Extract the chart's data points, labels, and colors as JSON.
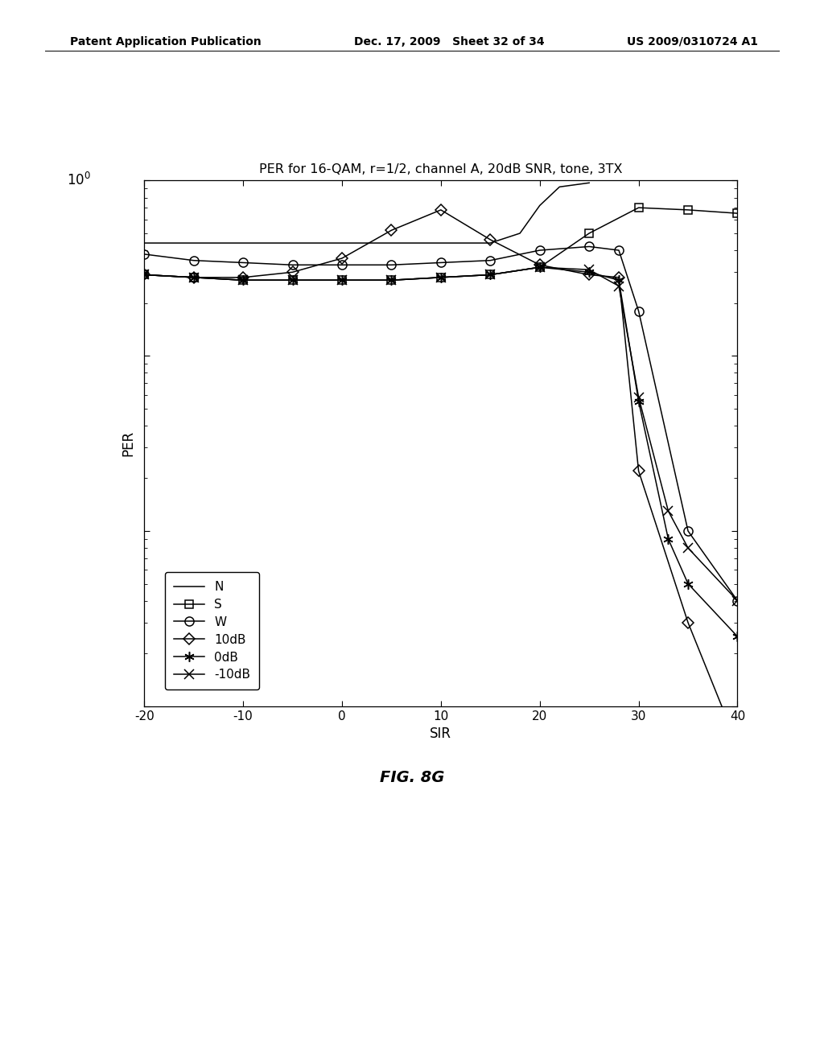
{
  "title": "PER for 16-QAM, r=1/2, channel A, 20dB SNR, tone, 3TX",
  "xlabel": "SIR",
  "ylabel": "PER",
  "fig_caption": "FIG. 8G",
  "header_left": "Patent Application Publication",
  "header_center": "Dec. 17, 2009   Sheet 32 of 34",
  "header_right": "US 2009/0310724 A1",
  "series": [
    {
      "label": "N",
      "marker": "none",
      "x": [
        -20,
        -10,
        0,
        10,
        15,
        18,
        20,
        22,
        25
      ],
      "y": [
        0.44,
        0.44,
        0.44,
        0.44,
        0.44,
        0.5,
        0.72,
        0.92,
        0.97
      ]
    },
    {
      "label": "S",
      "marker": "s",
      "x": [
        -20,
        -15,
        -10,
        -5,
        0,
        5,
        10,
        15,
        20,
        25,
        30,
        35,
        40
      ],
      "y": [
        0.29,
        0.28,
        0.27,
        0.27,
        0.27,
        0.27,
        0.28,
        0.29,
        0.32,
        0.5,
        0.7,
        0.68,
        0.65
      ]
    },
    {
      "label": "W",
      "marker": "o",
      "x": [
        -20,
        -15,
        -10,
        -5,
        0,
        5,
        10,
        15,
        20,
        25,
        28,
        30,
        35,
        40
      ],
      "y": [
        0.38,
        0.35,
        0.34,
        0.33,
        0.33,
        0.33,
        0.34,
        0.35,
        0.4,
        0.42,
        0.4,
        0.18,
        0.01,
        0.004
      ]
    },
    {
      "label": "10dB",
      "marker": "D",
      "x": [
        -20,
        -15,
        -10,
        -5,
        0,
        5,
        10,
        15,
        20,
        25,
        28,
        30,
        35,
        40
      ],
      "y": [
        0.29,
        0.28,
        0.28,
        0.3,
        0.36,
        0.52,
        0.68,
        0.46,
        0.33,
        0.29,
        0.28,
        0.022,
        0.003,
        0.0006
      ]
    },
    {
      "label": "0dB",
      "marker": "star",
      "x": [
        -20,
        -15,
        -10,
        -5,
        0,
        5,
        10,
        15,
        20,
        25,
        28,
        30,
        33,
        35,
        40
      ],
      "y": [
        0.29,
        0.28,
        0.27,
        0.27,
        0.27,
        0.27,
        0.28,
        0.29,
        0.32,
        0.3,
        0.27,
        0.055,
        0.009,
        0.005,
        0.0025
      ]
    },
    {
      "label": "-10dB",
      "marker": "x",
      "x": [
        -20,
        -15,
        -10,
        -5,
        0,
        5,
        10,
        15,
        20,
        25,
        28,
        30,
        33,
        35,
        40
      ],
      "y": [
        0.29,
        0.28,
        0.27,
        0.27,
        0.27,
        0.27,
        0.28,
        0.29,
        0.32,
        0.31,
        0.25,
        0.058,
        0.013,
        0.008,
        0.004
      ]
    }
  ]
}
